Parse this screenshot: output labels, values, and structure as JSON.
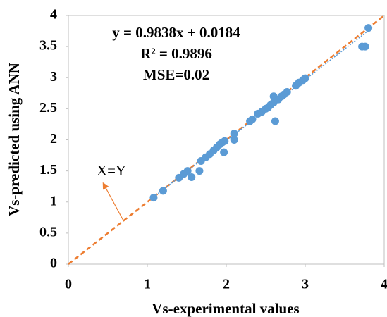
{
  "chart_data": {
    "type": "scatter",
    "x_label": "Vs-experimental values",
    "y_label": "Vs-predicted using ANN",
    "xlim": [
      0,
      4
    ],
    "ylim": [
      0,
      4
    ],
    "xticks": [
      0,
      1,
      2,
      3,
      4
    ],
    "yticks": [
      0,
      0.5,
      1,
      1.5,
      2,
      2.5,
      3,
      3.5,
      4
    ],
    "grid": false,
    "series": [
      {
        "color": "#5b9bd5",
        "x": [
          1.08,
          1.2,
          1.4,
          1.46,
          1.51,
          1.56,
          1.66,
          1.68,
          1.74,
          1.79,
          1.84,
          1.88,
          1.92,
          1.95,
          1.97,
          1.98,
          2.1,
          2.1,
          2.3,
          2.33,
          2.4,
          2.45,
          2.5,
          2.53,
          2.56,
          2.6,
          2.6,
          2.62,
          2.66,
          2.7,
          2.73,
          2.77,
          2.88,
          2.92,
          2.97,
          3.0,
          3.72,
          3.76,
          3.8
        ],
        "y": [
          1.07,
          1.18,
          1.39,
          1.45,
          1.5,
          1.4,
          1.5,
          1.66,
          1.72,
          1.77,
          1.83,
          1.88,
          1.93,
          1.96,
          1.8,
          1.98,
          2.0,
          2.1,
          2.3,
          2.33,
          2.42,
          2.45,
          2.5,
          2.52,
          2.56,
          2.6,
          2.7,
          2.3,
          2.65,
          2.7,
          2.73,
          2.77,
          2.87,
          2.92,
          2.96,
          2.99,
          3.5,
          3.5,
          3.8
        ]
      }
    ],
    "trendline": {
      "label": "y = 0.9838x + 0.0184",
      "slope": 0.9838,
      "intercept": 0.0184,
      "color": "#5b9bd5"
    },
    "r_squared": "R² = 0.9896",
    "mse": "MSE=0.02",
    "reference_line": {
      "label": "X=Y",
      "color": "#ed7d31"
    }
  }
}
